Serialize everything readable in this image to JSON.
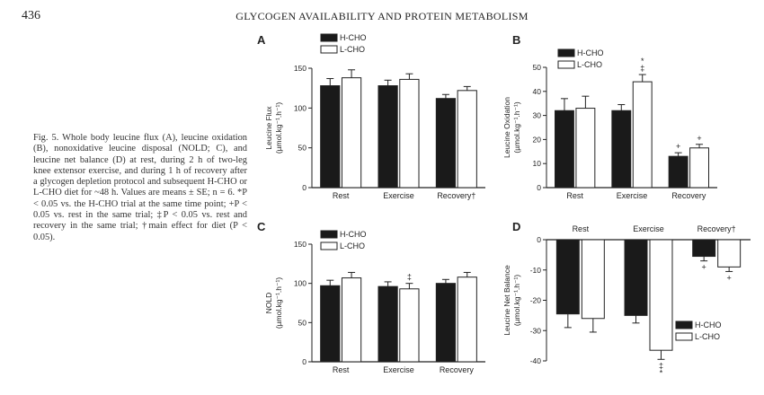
{
  "header": {
    "page_number": "436",
    "running_title": "GLYCOGEN AVAILABILITY AND PROTEIN METABOLISM"
  },
  "caption": "Fig. 5. Whole body leucine flux (A), leucine oxidation (B), nonoxidative leucine disposal (NOLD; C), and leucine net balance (D) at rest, during 2 h of two-leg knee extensor exercise, and during 1 h of recovery after a glycogen depletion protocol and subsequent H-CHO or L-CHO diet for ~48 h. Values are means ± SE; n = 6. *P < 0.05 vs. the H-CHO trial at the same time point; +P < 0.05 vs. rest in the same trial; ‡P < 0.05 vs. rest and recovery in the same trial; †main effect for diet (P < 0.05).",
  "colors": {
    "hcho": "#1a1a1a",
    "lcho": "#ffffff",
    "stroke": "#222222"
  },
  "chart_data": [
    {
      "panel": "A",
      "type": "bar",
      "ylabel_line1": "Leucine Flux",
      "ylabel_line2": "(µmol.kg⁻¹.h⁻¹)",
      "ylim": [
        0,
        150
      ],
      "yticks": [
        "0",
        "50",
        "100",
        "150"
      ],
      "categories": [
        "Rest",
        "Exercise",
        "Recovery†"
      ],
      "series": [
        {
          "name": "H-CHO",
          "values": [
            128,
            128,
            112
          ],
          "errors": [
            9,
            7,
            5
          ]
        },
        {
          "name": "L-CHO",
          "values": [
            138,
            136,
            122
          ],
          "errors": [
            10,
            7,
            5
          ]
        }
      ],
      "annotations": [],
      "legend": "top-left"
    },
    {
      "panel": "B",
      "type": "bar",
      "ylabel_line1": "Leucine Oxidation",
      "ylabel_line2": "(µmol.kg⁻¹.h⁻¹)",
      "ylim": [
        0,
        50
      ],
      "yticks": [
        "0",
        "10",
        "20",
        "30",
        "40",
        "50"
      ],
      "categories": [
        "Rest",
        "Exercise",
        "Recovery"
      ],
      "series": [
        {
          "name": "H-CHO",
          "values": [
            32,
            32,
            13
          ],
          "errors": [
            5,
            2.5,
            1.5
          ]
        },
        {
          "name": "L-CHO",
          "values": [
            33,
            44,
            16.5
          ],
          "errors": [
            5,
            3,
            1.5
          ]
        }
      ],
      "annotations": [
        {
          "category": 1,
          "series": 1,
          "text": "‡"
        },
        {
          "category": 1,
          "series": 1,
          "text": "*"
        },
        {
          "category": 2,
          "series": 0,
          "text": "+"
        },
        {
          "category": 2,
          "series": 1,
          "text": "+"
        }
      ],
      "legend": "top-left"
    },
    {
      "panel": "C",
      "type": "bar",
      "ylabel_line1": "NOLD",
      "ylabel_line2": "(µmol.kg⁻¹.h⁻¹)",
      "ylim": [
        0,
        150
      ],
      "yticks": [
        "0",
        "50",
        "100",
        "150"
      ],
      "categories": [
        "Rest",
        "Exercise",
        "Recovery"
      ],
      "series": [
        {
          "name": "H-CHO",
          "values": [
            97,
            96,
            100
          ],
          "errors": [
            7,
            6,
            5
          ]
        },
        {
          "name": "L-CHO",
          "values": [
            107,
            93,
            108
          ],
          "errors": [
            7,
            7,
            6
          ]
        }
      ],
      "annotations": [
        {
          "category": 1,
          "series": 1,
          "text": "‡"
        }
      ],
      "legend": "top-left"
    },
    {
      "panel": "D",
      "type": "bar",
      "ylabel_line1": "Leucine Net Balance",
      "ylabel_line2": "(µmol.kg⁻¹.h⁻¹)",
      "ylim": [
        -40,
        0
      ],
      "yticks": [
        "-40",
        "-30",
        "-20",
        "-10",
        "0"
      ],
      "categories": [
        "Rest",
        "Exercise",
        "Recovery†"
      ],
      "series": [
        {
          "name": "H-CHO",
          "values": [
            -24.5,
            -25,
            -5.5
          ],
          "errors": [
            4.5,
            2.5,
            1.5
          ]
        },
        {
          "name": "L-CHO",
          "values": [
            -26,
            -36.5,
            -9
          ],
          "errors": [
            4.5,
            3,
            1.5
          ]
        }
      ],
      "annotations": [
        {
          "category": 1,
          "series": 1,
          "text": "‡"
        },
        {
          "category": 1,
          "series": 1,
          "text": "*"
        },
        {
          "category": 2,
          "series": 0,
          "text": "+"
        },
        {
          "category": 2,
          "series": 1,
          "text": "+"
        }
      ],
      "legend": "bottom-right"
    }
  ]
}
